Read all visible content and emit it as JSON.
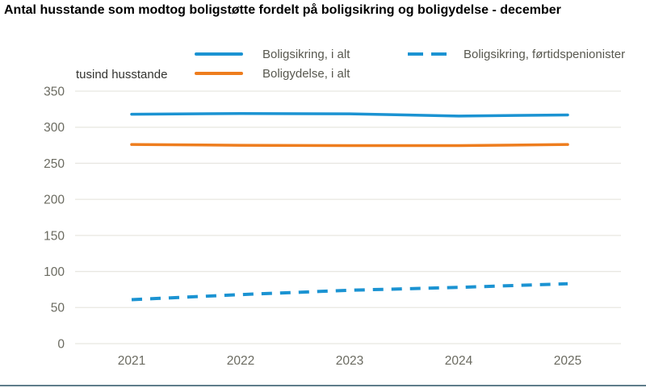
{
  "page": {
    "title": "Antal husstande som modtog boligstøtte fordelt på boligsikring og boligydelse - december"
  },
  "chart": {
    "unit_label": "tusind husstande",
    "legend": [
      {
        "label": "Boligsikring, i alt",
        "style": "solid",
        "color": "#1b93d2"
      },
      {
        "label": "Boligsikring, førtidspenionister",
        "style": "dashed",
        "color": "#1b93d2"
      },
      {
        "label": "Boligydelse, i alt",
        "style": "solid",
        "color": "#ee7d1e"
      }
    ]
  },
  "chart_data": {
    "type": "line",
    "title": "Antal husstande som modtog boligstøtte fordelt på boligsikring og boligydelse - december",
    "ylabel": "tusind husstande",
    "x": [
      2021,
      2022,
      2023,
      2024,
      2025
    ],
    "series": [
      {
        "name": "Boligsikring, i alt",
        "values": [
          318,
          319,
          318.5,
          315.5,
          317
        ],
        "color": "#1b93d2",
        "dashed": false
      },
      {
        "name": "Boligydelse, i alt",
        "values": [
          276,
          275,
          274.5,
          274.5,
          276
        ],
        "color": "#ee7d1e",
        "dashed": false
      },
      {
        "name": "Boligsikring, førtidspenionister",
        "values": [
          61,
          68,
          74,
          78,
          83
        ],
        "color": "#1b93d2",
        "dashed": true
      }
    ],
    "ylim": [
      0,
      350
    ],
    "ytick_step": 50,
    "grid": true,
    "legend_position": "top",
    "tick_label_color": "#6b6b61",
    "gridline_color": "#e8e7e1"
  },
  "footer": {
    "rule_color": "#5f7d8b"
  }
}
